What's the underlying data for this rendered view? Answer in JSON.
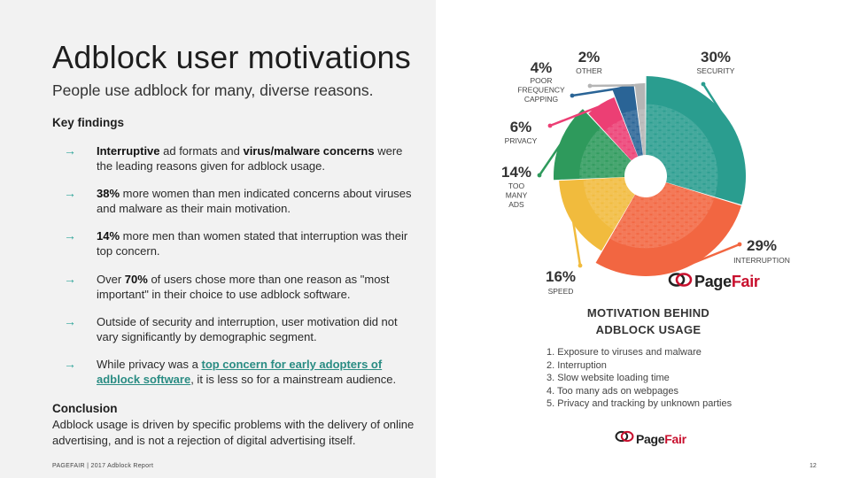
{
  "title": "Adblock user motivations",
  "subtitle": "People use adblock for many, diverse reasons.",
  "key_findings": {
    "heading": "Key findings",
    "items": [
      {
        "parts": [
          {
            "text": "Interruptive",
            "style": "bold"
          },
          {
            "text": " ad formats and ",
            "style": "normal"
          },
          {
            "text": "virus/malware concerns",
            "style": "bold"
          },
          {
            "text": " were the leading reasons given for adblock usage.",
            "style": "normal"
          }
        ]
      },
      {
        "parts": [
          {
            "text": "38%",
            "style": "bold"
          },
          {
            "text": " more women than men indicated concerns about viruses and malware as their main motivation.",
            "style": "normal"
          }
        ]
      },
      {
        "parts": [
          {
            "text": "14%",
            "style": "bold"
          },
          {
            "text": " more men than women stated that interruption was their top concern.",
            "style": "normal"
          }
        ]
      },
      {
        "parts": [
          {
            "text": "Over ",
            "style": "normal"
          },
          {
            "text": "70%",
            "style": "bold"
          },
          {
            "text": " of users chose more than one reason as \"most important\" in their choice to use adblock software.",
            "style": "normal"
          }
        ]
      },
      {
        "parts": [
          {
            "text": "Outside of security and interruption, user motivation did not vary significantly by demographic segment.",
            "style": "normal"
          }
        ]
      },
      {
        "parts": [
          {
            "text": "While privacy was a ",
            "style": "normal"
          },
          {
            "text": "top concern for early adopters of adblock software",
            "style": "link"
          },
          {
            "text": ", it is less so for a mainstream audience.",
            "style": "normal"
          }
        ]
      }
    ]
  },
  "conclusion": {
    "heading": "Conclusion",
    "text": "Adblock usage is driven by specific problems with the delivery of online advertising, and is not a rejection of digital advertising itself."
  },
  "footer": "PAGEFAIR | 2017 Adblock Report",
  "page_number": "12",
  "logo": {
    "page": "Page",
    "fair": "Fair"
  },
  "colors": {
    "accent": "#2fa59a",
    "security": "#2a9d8f",
    "interruption": "#f26641",
    "speed": "#f1bb3d",
    "too_many_ads": "#2e9a5c",
    "privacy": "#ec3f74",
    "poor_frequency_capping": "#2a6496",
    "other": "#b5b5b5",
    "brand_red": "#c8102e"
  },
  "chart_data": {
    "type": "pie",
    "subtype": "donut",
    "title_lines": [
      "MOTIVATION BEHIND",
      "ADBLOCK USAGE"
    ],
    "slices": [
      {
        "category": "SECURITY",
        "value": 30,
        "label": "30%",
        "name_lines": [
          "SECURITY"
        ],
        "color": "#2a9d8f"
      },
      {
        "category": "INTERRUPTION",
        "value": 29,
        "label": "29%",
        "name_lines": [
          "INTERRUPTION"
        ],
        "color": "#f26641"
      },
      {
        "category": "SPEED",
        "value": 16,
        "label": "16%",
        "name_lines": [
          "SPEED"
        ],
        "color": "#f1bb3d"
      },
      {
        "category": "TOO MANY ADS",
        "value": 14,
        "label": "14%",
        "name_lines": [
          "TOO",
          "MANY",
          "ADS"
        ],
        "color": "#2e9a5c"
      },
      {
        "category": "PRIVACY",
        "value": 6,
        "label": "6%",
        "name_lines": [
          "PRIVACY"
        ],
        "color": "#ec3f74"
      },
      {
        "category": "POOR FREQUENCY CAPPING",
        "value": 4,
        "label": "4%",
        "name_lines": [
          "POOR",
          "FREQUENCY",
          "CAPPING"
        ],
        "color": "#2a6496"
      },
      {
        "category": "OTHER",
        "value": 2,
        "label": "2%",
        "name_lines": [
          "OTHER"
        ],
        "color": "#b5b5b5"
      }
    ],
    "legend": [
      "1. Exposure to viruses and malware",
      "2. Interruption",
      "3. Slow website loading time",
      "4. Too many ads on webpages",
      "5. Privacy and tracking by unknown parties"
    ]
  }
}
